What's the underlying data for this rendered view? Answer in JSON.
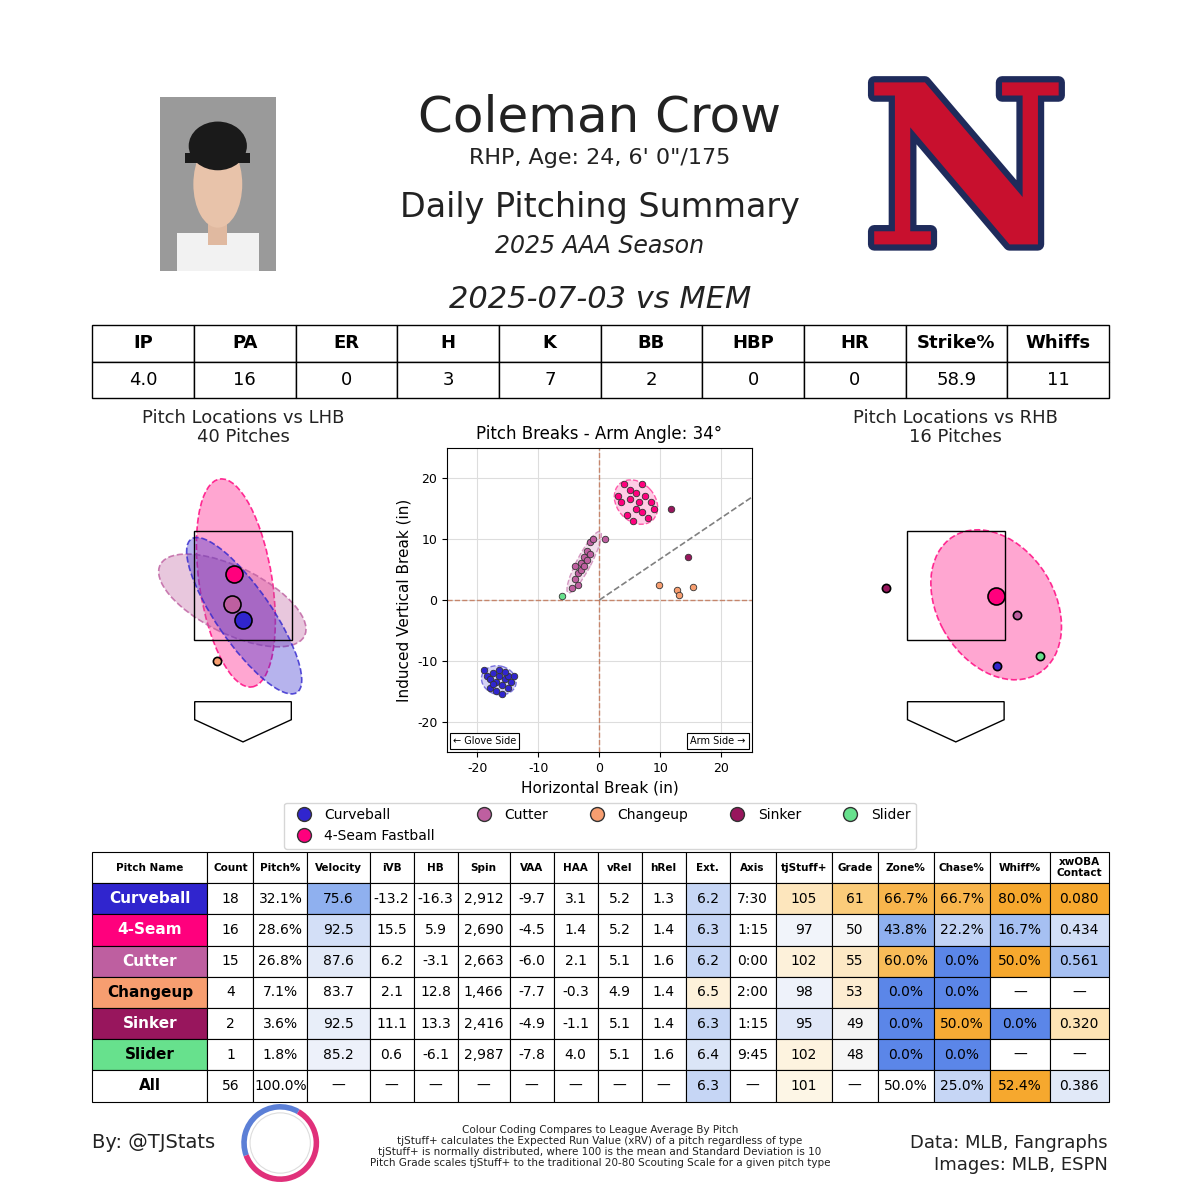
{
  "header": {
    "name": "Coleman Crow",
    "bio": "RHP, Age: 24, 6' 0\"/175",
    "subtitle": "Daily Pitching Summary",
    "season": "2025 AAA Season",
    "game": "2025-07-03 vs MEM",
    "logo": "N"
  },
  "stats_table": {
    "columns": [
      "IP",
      "PA",
      "ER",
      "H",
      "K",
      "BB",
      "HBP",
      "HR",
      "Strike%",
      "Whiffs"
    ],
    "values": [
      "4.0",
      "16",
      "0",
      "3",
      "7",
      "2",
      "0",
      "0",
      "58.9",
      "11"
    ]
  },
  "locations": [
    {
      "title": "Pitch Locations vs LHB",
      "subtitle": "40 Pitches",
      "xlim": [
        -1.85,
        1.85
      ],
      "ylim": [
        -0.6,
        4.9
      ],
      "strike_zone": {
        "x": [
          -0.83,
          0.83
        ],
        "z": [
          1.5,
          3.5
        ]
      },
      "ellipses": [
        {
          "name": "4-Seam Fastball",
          "center": [
            -0.12,
            2.55
          ],
          "width": 1.23,
          "height": 3.85,
          "angle": 8
        },
        {
          "name": "Cutter",
          "center": [
            -0.18,
            2.23
          ],
          "width": 2.76,
          "height": 1.2,
          "angle": -29
        },
        {
          "name": "Curveball",
          "center": [
            0.02,
            1.95
          ],
          "width": 3.33,
          "height": 0.95,
          "angle": -58
        }
      ],
      "means": [
        {
          "name": "4-Seam Fastball",
          "x": -0.15,
          "z": 2.72
        },
        {
          "name": "Cutter",
          "x": -0.18,
          "z": 2.17
        },
        {
          "name": "Curveball",
          "x": 0.0,
          "z": 1.88
        },
        {
          "name": "Changeup",
          "x": -0.43,
          "z": 1.12
        }
      ]
    },
    {
      "title": "Pitch Locations vs RHB",
      "subtitle": "16 Pitches",
      "xlim": [
        -1.85,
        1.85
      ],
      "ylim": [
        -0.6,
        4.9
      ],
      "strike_zone": {
        "x": [
          -0.83,
          0.83
        ],
        "z": [
          1.5,
          3.5
        ]
      },
      "ellipses": [
        {
          "name": "4-Seam Fastball",
          "center": [
            0.68,
            2.15
          ],
          "width": 2.9,
          "height": 2.0,
          "angle": -64
        }
      ],
      "means": [
        {
          "name": "4-Seam Fastball",
          "x": 0.68,
          "z": 2.32
        },
        {
          "name": "Cutter",
          "x": 1.03,
          "z": 1.97
        },
        {
          "name": "Sinker",
          "x": -1.18,
          "z": 2.46
        },
        {
          "name": "Curveball",
          "x": 0.7,
          "z": 1.03
        },
        {
          "name": "Slider",
          "x": 1.42,
          "z": 1.21
        }
      ]
    }
  ],
  "chart_data": {
    "type": "scatter",
    "title": "Pitch Breaks - Arm Angle: 34°",
    "arm_angle": 34,
    "x_label": "Horizontal Break (in)",
    "y_label": "Induced Vertical Break (in)",
    "xlim": [
      -25,
      25
    ],
    "ylim": [
      -25,
      25
    ],
    "xticks": [
      -20,
      -10,
      0,
      10,
      20
    ],
    "yticks": [
      -20,
      -10,
      0,
      10,
      20
    ],
    "grid": true,
    "legend": "below",
    "annotations": [
      "← Glove Side",
      "Arm Side →"
    ],
    "series": [
      {
        "name": "Curveball",
        "color": "#3025ce",
        "x": [
          -19,
          -18.5,
          -18,
          -17.5,
          -17,
          -16.5,
          -16,
          -15.5,
          -15,
          -14.5,
          -18,
          -17,
          -16,
          -15,
          -14,
          -16.5,
          -17.5,
          -15.5
        ],
        "values": [
          -11.5,
          -12.5,
          -13,
          -12,
          -13.5,
          -12.5,
          -14,
          -13,
          -12.5,
          -13.5,
          -14.5,
          -15,
          -15.5,
          -14.5,
          -12.5,
          -11.5,
          -13.8,
          -11.8
        ]
      },
      {
        "name": "4-Seam Fastball",
        "color": "#ff007d",
        "x": [
          4,
          5,
          6,
          7,
          3.5,
          5,
          6.5,
          7.5,
          8.5,
          4.5,
          6,
          7,
          5.5,
          8,
          3,
          9
        ],
        "values": [
          19,
          18,
          17.5,
          19,
          16,
          16.5,
          16,
          17,
          16,
          14,
          15,
          14.5,
          13,
          13.5,
          17,
          15
        ]
      },
      {
        "name": "Cutter",
        "color": "#be5fa0",
        "x": [
          -4.5,
          -4,
          -3.5,
          -3,
          -2.5,
          -2,
          -1.5,
          -1,
          -3,
          -2.5,
          -2,
          -3.5,
          -4,
          1,
          -1.5
        ],
        "values": [
          2,
          3.5,
          4.5,
          6,
          7,
          8,
          9.5,
          10,
          5,
          5.5,
          6.5,
          2.5,
          5.5,
          10,
          7.5
        ]
      },
      {
        "name": "Changeup",
        "color": "#f79e70",
        "x": [
          9.8,
          12.7,
          13,
          15.4
        ],
        "values": [
          2.5,
          1.7,
          0.8,
          2.1
        ]
      },
      {
        "name": "Sinker",
        "color": "#98165d",
        "x": [
          11.7,
          14.6
        ],
        "values": [
          15,
          7
        ]
      },
      {
        "name": "Slider",
        "color": "#67e18d",
        "x": [
          -6.1
        ],
        "values": [
          0.6
        ]
      }
    ]
  },
  "pitch_table": {
    "columns": [
      "Pitch Name",
      "Count",
      "Pitch%",
      "Velocity",
      "iVB",
      "HB",
      "Spin",
      "VAA",
      "HAA",
      "vRel",
      "hRel",
      "Ext.",
      "Axis",
      "tjStuff+",
      "Grade",
      "Zone%",
      "Chase%",
      "Whiff%",
      "xwOBA\nContact"
    ],
    "rows": [
      [
        "Curveball",
        "18",
        "32.1%",
        "75.6",
        "-13.2",
        "-16.3",
        "2,912",
        "-9.7",
        "3.1",
        "5.2",
        "1.3",
        "6.2",
        "7:30",
        "105",
        "61",
        "66.7%",
        "66.7%",
        "80.0%",
        "0.080"
      ],
      [
        "4-Seam",
        "16",
        "28.6%",
        "92.5",
        "15.5",
        "5.9",
        "2,690",
        "-4.5",
        "1.4",
        "5.2",
        "1.4",
        "6.3",
        "1:15",
        "97",
        "50",
        "43.8%",
        "22.2%",
        "16.7%",
        "0.434"
      ],
      [
        "Cutter",
        "15",
        "26.8%",
        "87.6",
        "6.2",
        "-3.1",
        "2,663",
        "-6.0",
        "2.1",
        "5.1",
        "1.6",
        "6.2",
        "0:00",
        "102",
        "55",
        "60.0%",
        "0.0%",
        "50.0%",
        "0.561"
      ],
      [
        "Changeup",
        "4",
        "7.1%",
        "83.7",
        "2.1",
        "12.8",
        "1,466",
        "-7.7",
        "-0.3",
        "4.9",
        "1.4",
        "6.5",
        "2:00",
        "98",
        "53",
        "0.0%",
        "0.0%",
        "—",
        "—"
      ],
      [
        "Sinker",
        "2",
        "3.6%",
        "92.5",
        "11.1",
        "13.3",
        "2,416",
        "-4.9",
        "-1.1",
        "5.1",
        "1.4",
        "6.3",
        "1:15",
        "95",
        "49",
        "0.0%",
        "50.0%",
        "0.0%",
        "0.320"
      ],
      [
        "Slider",
        "1",
        "1.8%",
        "85.2",
        "0.6",
        "-6.1",
        "2,987",
        "-7.8",
        "4.0",
        "5.1",
        "1.6",
        "6.4",
        "9:45",
        "102",
        "48",
        "0.0%",
        "0.0%",
        "—",
        "—"
      ],
      [
        "All",
        "56",
        "100.0%",
        "—",
        "—",
        "—",
        "—",
        "—",
        "—",
        "—",
        "—",
        "6.3",
        "—",
        "101",
        "—",
        "50.0%",
        "25.0%",
        "52.4%",
        "0.386"
      ]
    ],
    "cell_colors": [
      [
        "#3025ce",
        "#ffffff",
        "#ffffff",
        "#8fb0ef",
        "#ffffff",
        "#ffffff",
        "#ffffff",
        "#ffffff",
        "#ffffff",
        "#ffffff",
        "#ffffff",
        "#c6d6f5",
        "#ffffff",
        "#fde6bd",
        "#fbcc7a",
        "#f8b54c",
        "#f8b54c",
        "#f6a82e",
        "#f6a82e"
      ],
      [
        "#ff007d",
        "#ffffff",
        "#ffffff",
        "#d3dff7",
        "#ffffff",
        "#ffffff",
        "#ffffff",
        "#ffffff",
        "#ffffff",
        "#ffffff",
        "#ffffff",
        "#c6d6f5",
        "#ffffff",
        "#f1f4fa",
        "#f7f7f7",
        "#8fb0ef",
        "#c2d3f5",
        "#a6c0f2",
        "#d3dff7"
      ],
      [
        "#be5fa0",
        "#ffffff",
        "#ffffff",
        "#e3eaf8",
        "#ffffff",
        "#ffffff",
        "#ffffff",
        "#ffffff",
        "#ffffff",
        "#ffffff",
        "#ffffff",
        "#c6d6f5",
        "#ffffff",
        "#fdf1da",
        "#fce8c4",
        "#f8bb58",
        "#5b86e8",
        "#f6a82e",
        "#a6c0f2"
      ],
      [
        "#f79e70",
        "#ffffff",
        "#ffffff",
        "#ffffff",
        "#ffffff",
        "#ffffff",
        "#ffffff",
        "#ffffff",
        "#ffffff",
        "#ffffff",
        "#ffffff",
        "#fdf1da",
        "#ffffff",
        "#eef2fa",
        "#fdedd2",
        "#5b86e8",
        "#5b86e8",
        "#ffffff",
        "#ffffff"
      ],
      [
        "#98165d",
        "#ffffff",
        "#ffffff",
        "#e8eef9",
        "#ffffff",
        "#ffffff",
        "#ffffff",
        "#ffffff",
        "#ffffff",
        "#ffffff",
        "#ffffff",
        "#c6d6f5",
        "#ffffff",
        "#dfe7f8",
        "#f4f4f4",
        "#5b86e8",
        "#f7ab35",
        "#5b86e8",
        "#fde3b4"
      ],
      [
        "#67e18d",
        "#ffffff",
        "#ffffff",
        "#edf1fa",
        "#ffffff",
        "#ffffff",
        "#ffffff",
        "#ffffff",
        "#ffffff",
        "#ffffff",
        "#ffffff",
        "#dbe5f7",
        "#ffffff",
        "#fdf3df",
        "#f6f6f6",
        "#5b86e8",
        "#5b86e8",
        "#ffffff",
        "#ffffff"
      ],
      [
        "#ffffff",
        "#ffffff",
        "#ffffff",
        "#ffffff",
        "#ffffff",
        "#ffffff",
        "#ffffff",
        "#ffffff",
        "#ffffff",
        "#ffffff",
        "#ffffff",
        "#c6d6f5",
        "#ffffff",
        "#fdf6e6",
        "#ffffff",
        "#ffffff",
        "#c6d6f5",
        "#f6a82e",
        "#e1e9f8"
      ]
    ]
  },
  "footer": {
    "credit": "By: @TJStats",
    "notes": [
      "Colour Coding Compares to League Average By Pitch",
      "tjStuff+ calculates the Expected Run Value (xRV) of a pitch regardless of type",
      "tjStuff+ is normally distributed, where 100 is the mean and Standard Deviation is 10",
      "Pitch Grade scales tjStuff+ to the traditional 20-80 Scouting Scale for a given pitch type"
    ],
    "sources": [
      "Data: MLB, Fangraphs",
      "Images: MLB, ESPN"
    ]
  }
}
